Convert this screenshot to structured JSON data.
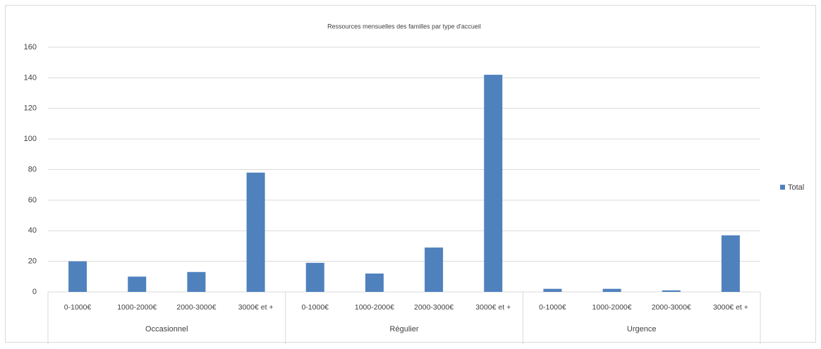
{
  "chart_data": {
    "type": "bar",
    "title": "Ressources mensuelles des familles par type d'accueil",
    "categories": [
      "0-1000€",
      "1000-2000€",
      "2000-3000€",
      "3000€ et +",
      "0-1000€",
      "1000-2000€",
      "2000-3000€",
      "3000€ et +",
      "0-1000€",
      "1000-2000€",
      "2000-3000€",
      "3000€ et +"
    ],
    "groups": [
      "Occasionnel",
      "Régulier",
      "Urgence"
    ],
    "series": [
      {
        "name": "Total",
        "color": "#4f81bd",
        "values": [
          20,
          10,
          13,
          78,
          19,
          12,
          29,
          142,
          2,
          2,
          1,
          37
        ]
      }
    ],
    "ylim": [
      0,
      160
    ],
    "yticks": [
      0,
      20,
      40,
      60,
      80,
      100,
      120,
      140,
      160
    ],
    "grid": true,
    "legend": "right"
  }
}
